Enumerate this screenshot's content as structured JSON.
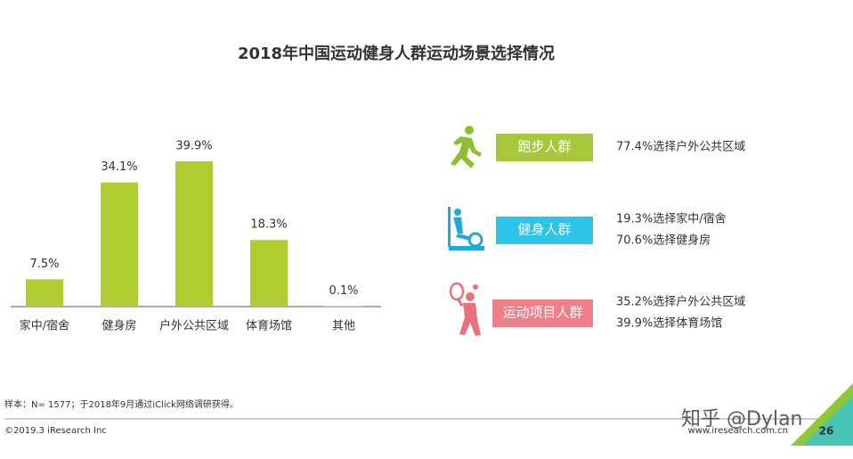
{
  "chart_data": {
    "type": "bar",
    "title": "2018年中国运动健身人群运动场景选择情况",
    "categories": [
      "家中/宿舍",
      "健身房",
      "户外公共区域",
      "体育场馆",
      "其他"
    ],
    "values": [
      7.5,
      34.1,
      39.9,
      18.3,
      0.1
    ],
    "value_labels": [
      "7.5%",
      "34.1%",
      "39.9%",
      "18.3%",
      "0.1%"
    ],
    "color": "#b0cd32"
  },
  "groups": [
    {
      "label": "跑步人群",
      "color": "#a8c83a",
      "lines": [
        "77.4%选择户外公共区域"
      ]
    },
    {
      "label": "健身人群",
      "color": "#2ec3e8",
      "lines": [
        "19.3%选择家中/宿舍",
        "70.6%选择健身房"
      ]
    },
    {
      "label": "运动项目人群",
      "color": "#ef7f88",
      "lines": [
        "35.2%选择户外公共区域",
        "39.9%选择体育场馆"
      ]
    }
  ],
  "footer": {
    "note": "样本：N= 1577；于2018年9月通过iClick网络调研获得。",
    "copyright": "©2019.3  iResearch Inc",
    "site": "www.iresearch.com.cn",
    "page": "26"
  },
  "watermark": "知乎 @Dylan"
}
